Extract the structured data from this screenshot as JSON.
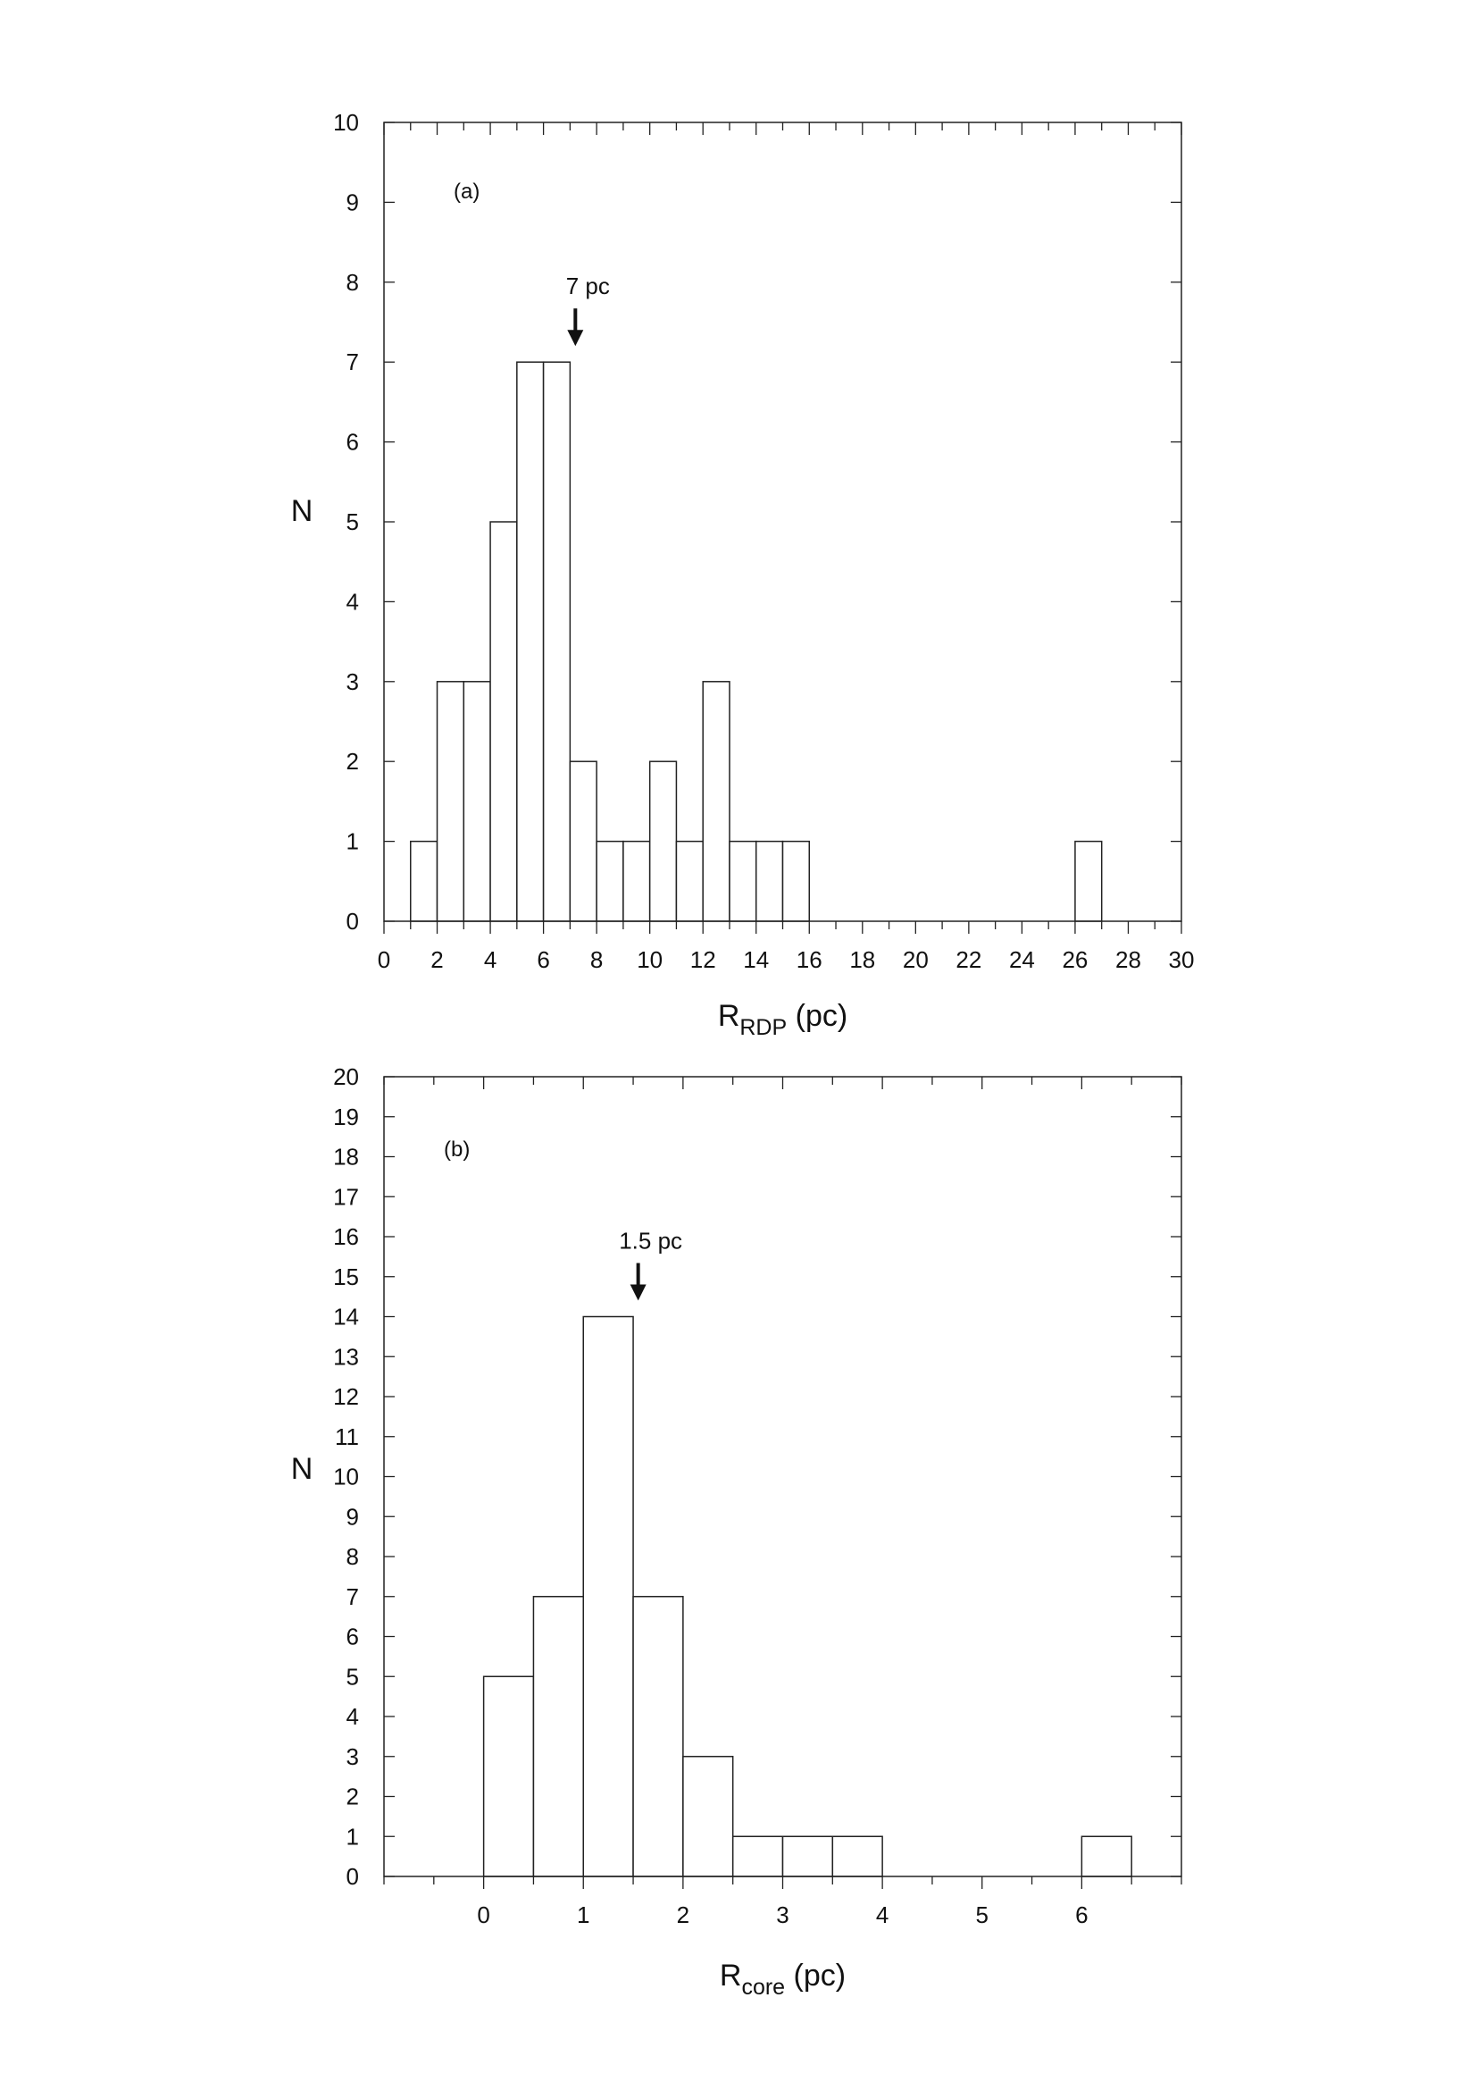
{
  "chart_data": [
    {
      "type": "bar",
      "panel_label": "(a)",
      "xlabel_main": "R",
      "xlabel_sub": "RDP",
      "xlabel_unit": " (pc)",
      "ylabel": "N",
      "xlim": [
        0,
        30
      ],
      "ylim": [
        0,
        10
      ],
      "xticks": [
        0,
        2,
        4,
        6,
        8,
        10,
        12,
        14,
        16,
        18,
        20,
        22,
        24,
        26,
        28,
        30
      ],
      "yticks": [
        0,
        1,
        2,
        3,
        4,
        5,
        6,
        7,
        8,
        9,
        10
      ],
      "x_minor_step": 1,
      "bin_width": 1,
      "bin_starts": [
        1,
        2,
        3,
        4,
        5,
        6,
        7,
        8,
        9,
        10,
        11,
        12,
        13,
        14,
        15,
        26
      ],
      "values": [
        1,
        3,
        3,
        5,
        7,
        7,
        2,
        1,
        1,
        2,
        1,
        3,
        1,
        1,
        1,
        1
      ],
      "annotation": {
        "text": "7 pc",
        "x": 7.2,
        "y": 7
      }
    },
    {
      "type": "bar",
      "panel_label": "(b)",
      "xlabel_main": "R",
      "xlabel_sub": "core",
      "xlabel_unit": " (pc)",
      "ylabel": "N",
      "xlim": [
        -1,
        7
      ],
      "ylim": [
        0,
        20
      ],
      "xticks": [
        0,
        1,
        2,
        3,
        4,
        5,
        6
      ],
      "yticks": [
        0,
        1,
        2,
        3,
        4,
        5,
        6,
        7,
        8,
        9,
        10,
        11,
        12,
        13,
        14,
        15,
        16,
        17,
        18,
        19,
        20
      ],
      "x_minor_step": 0.5,
      "bin_width": 0.5,
      "bin_starts": [
        0,
        0.5,
        1,
        1.5,
        2,
        2.5,
        3,
        3.5,
        6
      ],
      "values": [
        5,
        7,
        14,
        7,
        3,
        1,
        1,
        1,
        1
      ],
      "annotation": {
        "text": "1.5 pc",
        "x": 1.55,
        "y": 14
      }
    }
  ]
}
